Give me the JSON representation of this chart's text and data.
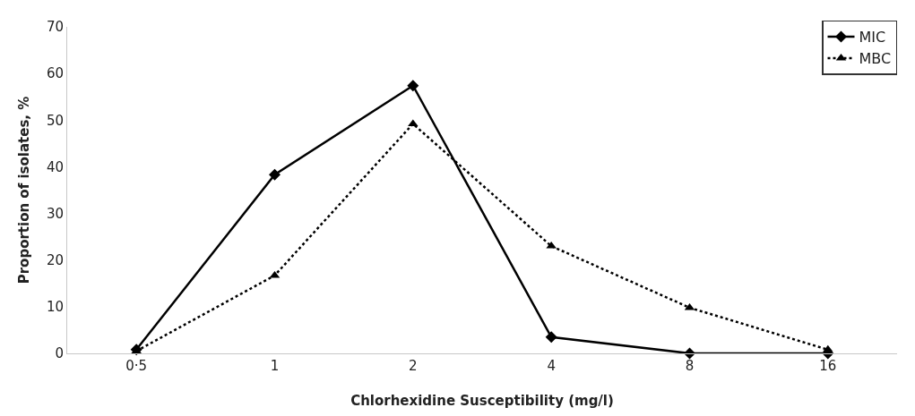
{
  "chart_data": {
    "type": "line",
    "xlabel": "Chlorhexidine Susceptibility (mg/l)",
    "ylabel": "Proportion of isolates, %",
    "categories": [
      "0·5",
      "1",
      "2",
      "4",
      "8",
      "16"
    ],
    "series": [
      {
        "name": "MIC",
        "color": "#000000",
        "values": [
          0.8,
          38.3,
          57.4,
          3.5,
          0,
          0
        ],
        "marker": "diamond",
        "line_style": "solid"
      },
      {
        "name": "MBC",
        "color": "#000000",
        "values": [
          0.5,
          16.7,
          49.2,
          23,
          9.8,
          0.8
        ],
        "marker": "triangle",
        "line_style": "dotted"
      }
    ],
    "ylim": [
      0,
      70
    ],
    "yticks": [
      0,
      10,
      20,
      30,
      40,
      50,
      60,
      70
    ],
    "legend": "top right"
  }
}
